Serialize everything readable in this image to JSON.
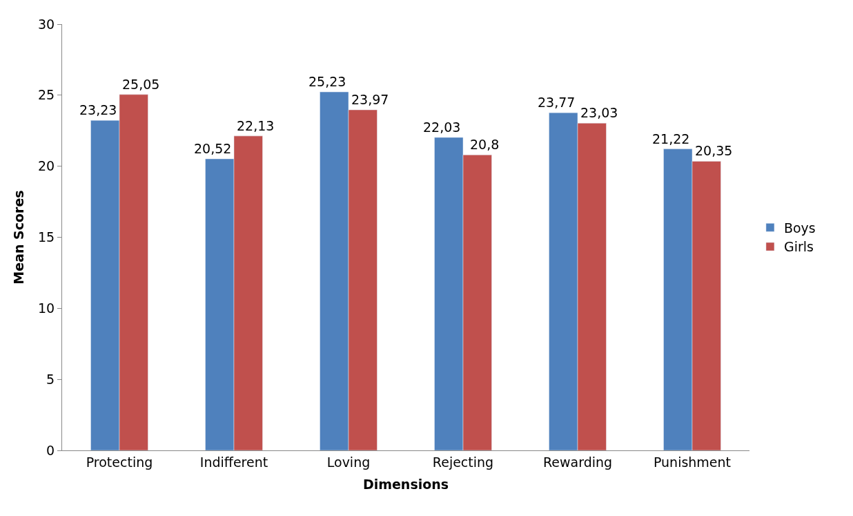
{
  "chart_data": {
    "type": "bar",
    "xlabel": "Dimensions",
    "ylabel": "Mean Scores",
    "categories": [
      "Protecting",
      "Indifferent",
      "Loving",
      "Rejecting",
      "Rewarding",
      "Punishment"
    ],
    "series": [
      {
        "name": "Boys",
        "color": "#4f81bd",
        "values": [
          23.23,
          20.52,
          25.23,
          22.03,
          23.77,
          21.22
        ],
        "value_labels": [
          "23,23",
          "20,52",
          "25,23",
          "22,03",
          "23,77",
          "21,22"
        ]
      },
      {
        "name": "Girls",
        "color": "#c0504d",
        "values": [
          25.05,
          22.13,
          23.97,
          20.8,
          23.03,
          20.35
        ],
        "value_labels": [
          "25,05",
          "22,13",
          "23,97",
          "20,8",
          "23,03",
          "20,35"
        ]
      }
    ],
    "ylim": [
      0,
      30
    ],
    "yticks": [
      0,
      5,
      10,
      15,
      20,
      25,
      30
    ],
    "legend": "right"
  }
}
